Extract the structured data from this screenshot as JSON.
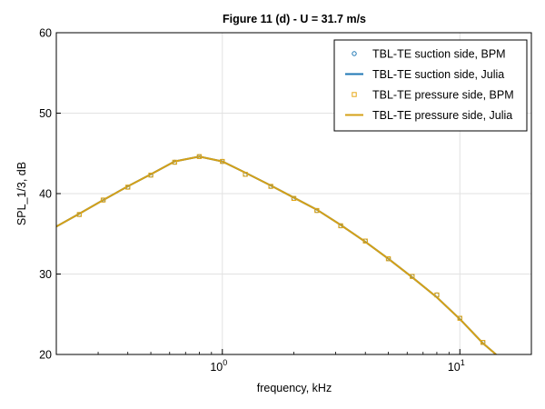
{
  "chart_data": {
    "type": "line",
    "title": "Figure 11 (d) - U = 31.7 m/s",
    "xlabel": "frequency, kHz",
    "ylabel": "SPL_1/3, dB",
    "xscale": "log",
    "xlim": [
      0.2,
      20
    ],
    "ylim": [
      20,
      60
    ],
    "yticks": [
      20,
      30,
      40,
      50,
      60
    ],
    "xticks": [
      {
        "value": 1,
        "base": "10",
        "exp": "0"
      },
      {
        "value": 10,
        "base": "10",
        "exp": "1"
      }
    ],
    "grid": true,
    "legend_position": "top-right",
    "series": [
      {
        "name": "TBL-TE suction side, BPM",
        "style": "markers",
        "marker": "circle",
        "color": "#1f77b4",
        "x": [
          0.25,
          0.315,
          0.4,
          0.5,
          0.63,
          0.8,
          1.0,
          1.25,
          1.6,
          2.0,
          2.5,
          3.15,
          4.0,
          5.0,
          6.3,
          8.0,
          10.0,
          12.5
        ],
        "y": [
          37.4,
          39.2,
          40.8,
          42.3,
          43.9,
          44.6,
          44.0,
          42.4,
          40.9,
          39.4,
          37.9,
          36.0,
          34.1,
          31.9,
          29.7,
          27.4,
          24.5,
          21.5
        ]
      },
      {
        "name": "TBL-TE suction side, Julia",
        "style": "line",
        "color": "#1f77b4",
        "x": [
          0.2,
          0.25,
          0.315,
          0.4,
          0.5,
          0.63,
          0.8,
          1.0,
          1.25,
          1.6,
          2.0,
          2.5,
          3.15,
          4.0,
          5.0,
          6.3,
          8.0,
          10.0,
          12.5,
          14.2
        ],
        "y": [
          35.9,
          37.5,
          39.2,
          40.9,
          42.4,
          44.0,
          44.6,
          44.0,
          42.6,
          41.0,
          39.5,
          38.0,
          36.1,
          34.0,
          31.9,
          29.6,
          27.1,
          24.4,
          21.4,
          20.0
        ]
      },
      {
        "name": "TBL-TE pressure side, BPM",
        "style": "markers",
        "marker": "square",
        "color": "#e6a817",
        "x": [
          0.25,
          0.315,
          0.4,
          0.5,
          0.63,
          0.8,
          1.0,
          1.25,
          1.6,
          2.0,
          2.5,
          3.15,
          4.0,
          5.0,
          6.3,
          8.0,
          10.0,
          12.5
        ],
        "y": [
          37.4,
          39.2,
          40.8,
          42.3,
          43.9,
          44.6,
          44.0,
          42.4,
          40.9,
          39.4,
          37.9,
          36.0,
          34.1,
          31.9,
          29.7,
          27.4,
          24.5,
          21.5
        ]
      },
      {
        "name": "TBL-TE pressure side, Julia",
        "style": "line",
        "color": "#d4a017",
        "x": [
          0.2,
          0.25,
          0.315,
          0.4,
          0.5,
          0.63,
          0.8,
          1.0,
          1.25,
          1.6,
          2.0,
          2.5,
          3.15,
          4.0,
          5.0,
          6.3,
          8.0,
          10.0,
          12.5,
          14.2
        ],
        "y": [
          35.9,
          37.5,
          39.2,
          40.9,
          42.4,
          44.0,
          44.6,
          44.0,
          42.6,
          41.0,
          39.5,
          38.0,
          36.1,
          34.0,
          31.9,
          29.6,
          27.1,
          24.4,
          21.4,
          20.0
        ]
      }
    ]
  }
}
